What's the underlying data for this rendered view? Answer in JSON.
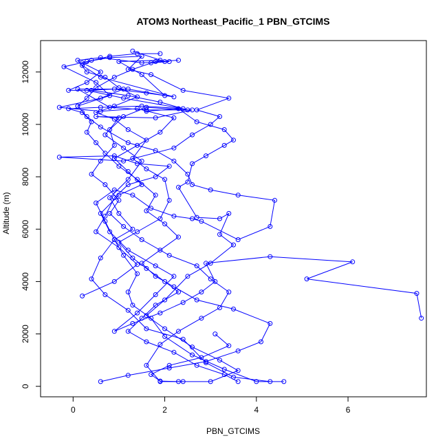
{
  "chart_data": {
    "type": "line",
    "title": "ATOM3 Northeast_Pacific_1 PBN_GTCIMS",
    "xlabel": "PBN_GTCIMS",
    "ylabel": "Altitude (m)",
    "xlim": [
      -0.71,
      7.71
    ],
    "ylim": [
      -400,
      13200
    ],
    "xticks": [
      0,
      2,
      4,
      6
    ],
    "yticks": [
      0,
      2000,
      4000,
      6000,
      8000,
      10000,
      12000
    ],
    "grid": false,
    "color": "#0000ff",
    "marker": "open-circle",
    "series": [
      {
        "points": [
          [
            0.6,
            180
          ],
          [
            1.2,
            420
          ],
          [
            2.1,
            700
          ],
          [
            2.9,
            950
          ],
          [
            3.6,
            1350
          ],
          [
            4.1,
            1700
          ],
          [
            4.3,
            2400
          ],
          [
            3.5,
            2950
          ],
          [
            2.7,
            3300
          ],
          [
            2.2,
            3800
          ],
          [
            1.8,
            4200
          ],
          [
            1.5,
            4700
          ],
          [
            1.9,
            5200
          ],
          [
            2.3,
            5700
          ],
          [
            2.0,
            6200
          ],
          [
            1.6,
            6700
          ],
          [
            1.8,
            7300
          ],
          [
            1.4,
            7900
          ],
          [
            1.0,
            8400
          ],
          [
            0.7,
            8900
          ],
          [
            0.5,
            9300
          ],
          [
            0.3,
            9700
          ],
          [
            0.4,
            10100
          ],
          [
            0.2,
            10450
          ],
          [
            -0.1,
            10600
          ],
          [
            0.6,
            10650
          ],
          [
            1.5,
            10700
          ],
          [
            2.4,
            10600
          ],
          [
            1.1,
            11000
          ],
          [
            0.3,
            11300
          ],
          [
            0.9,
            11350
          ],
          [
            1.6,
            11200
          ],
          [
            2.2,
            11050
          ],
          [
            0.6,
            11800
          ],
          [
            0.2,
            12250
          ],
          [
            0.4,
            12450
          ]
        ]
      },
      {
        "points": [
          [
            4.6,
            180
          ],
          [
            4.0,
            180
          ],
          [
            3.3,
            650
          ],
          [
            2.6,
            1200
          ],
          [
            2.0,
            1900
          ],
          [
            1.7,
            2600
          ],
          [
            1.3,
            3100
          ],
          [
            1.2,
            3600
          ],
          [
            1.4,
            4300
          ],
          [
            1.1,
            5000
          ],
          [
            0.9,
            5600
          ],
          [
            1.3,
            6000
          ],
          [
            1.0,
            6600
          ],
          [
            0.8,
            7200
          ],
          [
            1.2,
            7900
          ],
          [
            1.5,
            8600
          ],
          [
            1.1,
            9100
          ],
          [
            0.7,
            9600
          ],
          [
            1.0,
            10250
          ],
          [
            0.5,
            10300
          ],
          [
            1.8,
            10250
          ],
          [
            2.6,
            10550
          ],
          [
            1.6,
            10550
          ],
          [
            0.8,
            10650
          ],
          [
            0.1,
            11350
          ],
          [
            1.2,
            11350
          ],
          [
            2.0,
            11100
          ],
          [
            1.5,
            11900
          ],
          [
            1.0,
            12400
          ],
          [
            1.9,
            12450
          ],
          [
            2.0,
            12400
          ],
          [
            1.3,
            12800
          ]
        ]
      },
      {
        "points": [
          [
            3.1,
            2000
          ],
          [
            3.4,
            1550
          ],
          [
            2.8,
            1100
          ],
          [
            2.1,
            800
          ],
          [
            1.7,
            450
          ],
          [
            1.9,
            200
          ],
          [
            2.3,
            180
          ],
          [
            3.0,
            180
          ],
          [
            3.6,
            600
          ],
          [
            3.2,
            1000
          ],
          [
            2.6,
            1500
          ],
          [
            2.0,
            2200
          ],
          [
            1.6,
            2700
          ],
          [
            2.0,
            3300
          ],
          [
            2.5,
            4200
          ],
          [
            3.0,
            4700
          ],
          [
            3.5,
            5400
          ],
          [
            3.2,
            5800
          ],
          [
            3.4,
            6600
          ],
          [
            3.2,
            6400
          ],
          [
            2.7,
            6450
          ],
          [
            2.3,
            7600
          ],
          [
            2.5,
            7800
          ],
          [
            2.6,
            8500
          ],
          [
            2.9,
            8800
          ],
          [
            3.3,
            9200
          ],
          [
            3.5,
            9400
          ],
          [
            3.3,
            9800
          ],
          [
            2.7,
            10100
          ],
          [
            2.3,
            10600
          ],
          [
            1.6,
            10500
          ]
        ]
      },
      {
        "points": [
          [
            7.6,
            2600
          ],
          [
            7.5,
            3550
          ],
          [
            5.1,
            4100
          ],
          [
            6.1,
            4750
          ],
          [
            4.3,
            4950
          ],
          [
            2.9,
            4700
          ],
          [
            3.1,
            4000
          ],
          [
            2.8,
            3600
          ],
          [
            2.4,
            3200
          ],
          [
            1.9,
            2800
          ],
          [
            1.3,
            2400
          ],
          [
            0.9,
            2100
          ],
          [
            1.4,
            2800
          ],
          [
            1.8,
            3500
          ],
          [
            2.2,
            4200
          ],
          [
            1.8,
            4600
          ],
          [
            1.2,
            5200
          ],
          [
            0.8,
            5900
          ],
          [
            0.6,
            6600
          ],
          [
            1.0,
            7300
          ],
          [
            1.5,
            7700
          ],
          [
            1.2,
            8200
          ],
          [
            0.9,
            8700
          ],
          [
            1.4,
            9200
          ],
          [
            1.9,
            9700
          ],
          [
            2.2,
            10250
          ],
          [
            1.4,
            10600
          ],
          [
            0.6,
            10500
          ],
          [
            -0.3,
            10650
          ],
          [
            0.6,
            11000
          ],
          [
            1.1,
            11350
          ]
        ]
      },
      {
        "points": [
          [
            0.2,
            3450
          ],
          [
            0.9,
            4000
          ],
          [
            1.4,
            4650
          ],
          [
            1.0,
            5300
          ],
          [
            0.5,
            5900
          ],
          [
            0.7,
            6500
          ],
          [
            0.9,
            7200
          ],
          [
            1.2,
            7700
          ],
          [
            1.8,
            8000
          ],
          [
            2.1,
            8400
          ],
          [
            1.4,
            8500
          ],
          [
            0.9,
            8800
          ],
          [
            -0.3,
            8750
          ],
          [
            1.1,
            8600
          ],
          [
            2.2,
            9100
          ],
          [
            2.6,
            9600
          ],
          [
            3.0,
            10000
          ],
          [
            3.2,
            10300
          ],
          [
            2.7,
            10550
          ],
          [
            3.4,
            11000
          ],
          [
            2.4,
            11300
          ],
          [
            1.7,
            11900
          ],
          [
            1.2,
            12100
          ],
          [
            1.5,
            12600
          ],
          [
            0.8,
            12550
          ],
          [
            0.3,
            12400
          ],
          [
            -0.2,
            12200
          ],
          [
            0.5,
            11600
          ],
          [
            0.8,
            11100
          ],
          [
            0.1,
            10700
          ]
        ]
      },
      {
        "points": [
          [
            4.3,
            180
          ],
          [
            3.5,
            350
          ],
          [
            2.9,
            900
          ],
          [
            2.4,
            1800
          ],
          [
            1.6,
            2200
          ],
          [
            1.2,
            2900
          ],
          [
            0.7,
            3500
          ],
          [
            0.4,
            4100
          ],
          [
            0.6,
            4900
          ],
          [
            0.9,
            5600
          ],
          [
            0.7,
            6300
          ],
          [
            0.5,
            7000
          ],
          [
            0.9,
            7500
          ],
          [
            1.3,
            7300
          ],
          [
            1.7,
            6800
          ],
          [
            2.2,
            6500
          ],
          [
            2.6,
            6400
          ],
          [
            2.8,
            6300
          ],
          [
            3.6,
            5600
          ],
          [
            4.3,
            6100
          ],
          [
            4.4,
            7100
          ],
          [
            3.6,
            7300
          ],
          [
            3.0,
            7500
          ],
          [
            2.6,
            7700
          ],
          [
            2.5,
            8100
          ],
          [
            2.2,
            8600
          ],
          [
            1.8,
            9000
          ],
          [
            1.2,
            9300
          ],
          [
            0.6,
            9900
          ],
          [
            0.3,
            10300
          ],
          [
            0.1,
            10700
          ],
          [
            0.3,
            11000
          ],
          [
            0.5,
            11400
          ],
          [
            0.9,
            11800
          ],
          [
            1.3,
            12100
          ],
          [
            1.8,
            12400
          ],
          [
            2.3,
            12450
          ]
        ]
      },
      {
        "points": [
          [
            2.4,
            180
          ],
          [
            1.9,
            180
          ],
          [
            1.6,
            800
          ],
          [
            1.9,
            1600
          ],
          [
            2.3,
            2100
          ],
          [
            2.8,
            2600
          ],
          [
            3.2,
            3000
          ],
          [
            3.4,
            3600
          ],
          [
            3.0,
            4100
          ],
          [
            2.7,
            4600
          ],
          [
            2.1,
            5000
          ],
          [
            1.5,
            5600
          ],
          [
            1.1,
            6100
          ],
          [
            0.8,
            6600
          ],
          [
            1.0,
            7100
          ],
          [
            0.7,
            7700
          ],
          [
            0.4,
            8100
          ],
          [
            0.6,
            8600
          ],
          [
            0.9,
            9200
          ],
          [
            0.8,
            9800
          ],
          [
            1.1,
            10300
          ],
          [
            1.6,
            10650
          ],
          [
            2.5,
            10550
          ],
          [
            1.9,
            10850
          ],
          [
            1.2,
            11100
          ],
          [
            0.4,
            11300
          ],
          [
            -0.1,
            11300
          ],
          [
            0.3,
            11600
          ],
          [
            0.6,
            12000
          ],
          [
            0.2,
            12350
          ],
          [
            0.8,
            12600
          ],
          [
            1.4,
            12700
          ],
          [
            1.9,
            12700
          ]
        ]
      },
      {
        "points": [
          [
            3.6,
            180
          ],
          [
            3.3,
            450
          ],
          [
            2.7,
            800
          ],
          [
            2.2,
            1300
          ],
          [
            1.6,
            1700
          ],
          [
            1.2,
            2100
          ],
          [
            1.5,
            2600
          ],
          [
            1.8,
            3100
          ],
          [
            2.3,
            3600
          ],
          [
            2.0,
            4000
          ],
          [
            1.6,
            4500
          ],
          [
            1.3,
            4900
          ],
          [
            1.0,
            5500
          ],
          [
            1.4,
            5900
          ],
          [
            1.9,
            6400
          ],
          [
            2.1,
            7100
          ],
          [
            2.0,
            7900
          ],
          [
            1.6,
            8300
          ],
          [
            1.3,
            8700
          ],
          [
            1.6,
            9400
          ],
          [
            1.2,
            9800
          ],
          [
            0.9,
            10200
          ],
          [
            0.5,
            10450
          ],
          [
            0.9,
            10700
          ],
          [
            1.4,
            11050
          ],
          [
            1.0,
            11400
          ],
          [
            0.7,
            11800
          ],
          [
            0.3,
            12000
          ],
          [
            0.1,
            12450
          ],
          [
            0.6,
            12550
          ],
          [
            1.5,
            12350
          ],
          [
            2.1,
            12400
          ],
          [
            1.7,
            12350
          ]
        ]
      }
    ]
  }
}
